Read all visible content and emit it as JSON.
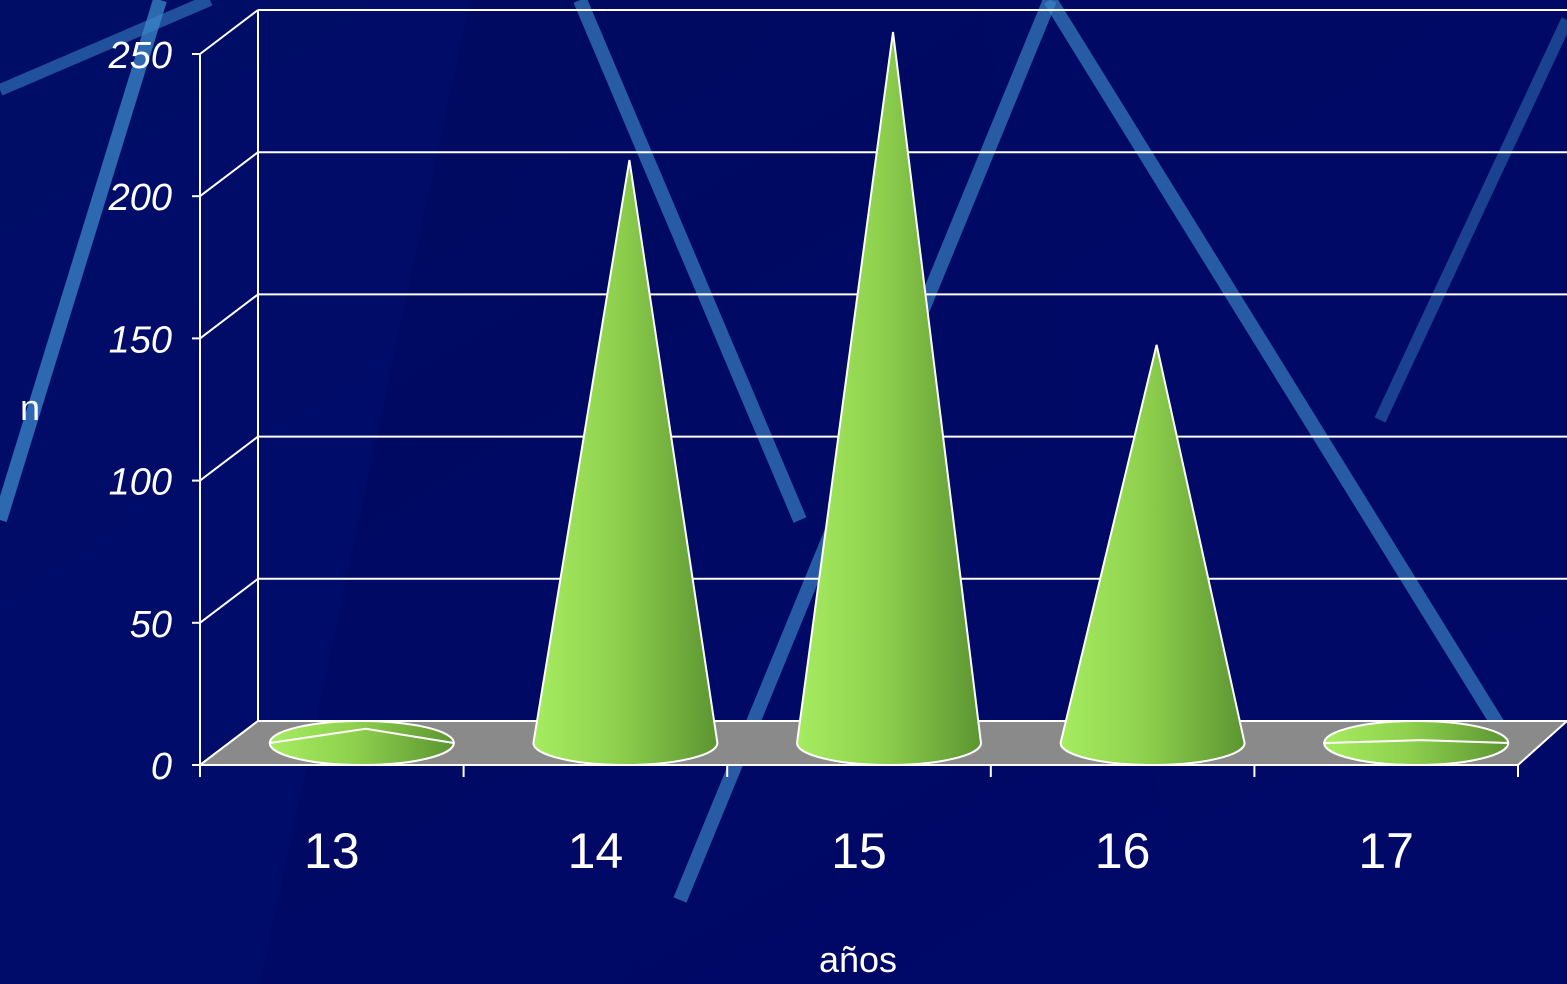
{
  "chart_data": {
    "type": "bar",
    "bar_shape": "cone",
    "three_d": true,
    "categories": [
      "13",
      "14",
      "15",
      "16",
      "17"
    ],
    "values": [
      5,
      205,
      250,
      140,
      1
    ],
    "xlabel": "años",
    "ylabel": "n",
    "ylim": [
      0,
      250
    ],
    "yticks": [
      "0",
      "50",
      "100",
      "150",
      "200",
      "250"
    ],
    "grid": true,
    "legend": "none",
    "colors": {
      "background": "#000a5e",
      "cone_light": "#9be05a",
      "cone_dark": "#5f9a33",
      "floor": "#8a8a8a",
      "gridline": "#ffffff",
      "text": "#ffffff"
    }
  }
}
